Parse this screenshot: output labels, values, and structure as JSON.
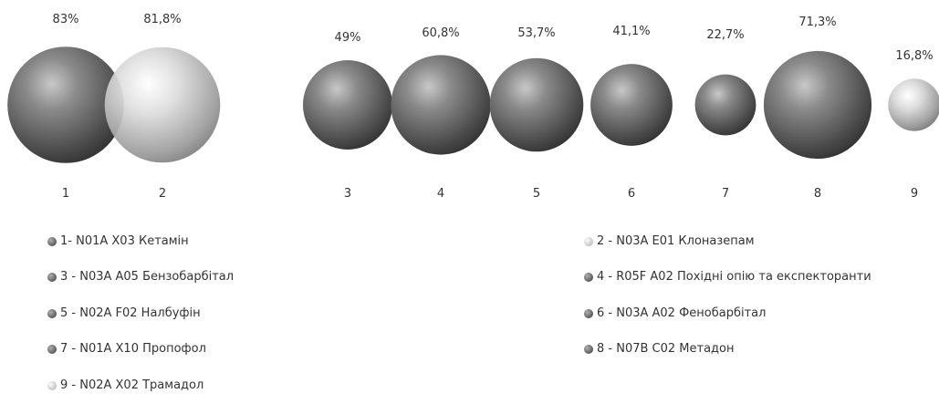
{
  "chart_data": {
    "type": "bubble",
    "categories": [
      "1",
      "2",
      "3",
      "4",
      "5",
      "6",
      "7",
      "8",
      "9"
    ],
    "values": [
      83,
      81.8,
      49,
      60.8,
      53.7,
      41.1,
      22.7,
      71.3,
      16.8
    ],
    "value_labels": [
      "83%",
      "81,8%",
      "49%",
      "60,8%",
      "53,7%",
      "41,1%",
      "22,7%",
      "71,3%",
      "16,8%"
    ],
    "shades": [
      "dark",
      "light",
      "dark",
      "dark",
      "dark",
      "dark",
      "dark",
      "dark",
      "light"
    ],
    "legend": [
      {
        "text": "1- N01A X03 Кетамін",
        "shade": "dark"
      },
      {
        "text": "2 - N03A E01 Клоназепам",
        "shade": "light"
      },
      {
        "text": "3 - N03A A05 Бензобарбітал",
        "shade": "dark"
      },
      {
        "text": "4 - R05F A02 Похідні опію та експекторанти",
        "shade": "dark"
      },
      {
        "text": "5 - N02A F02 Налбуфін",
        "shade": "dark"
      },
      {
        "text": "6 - N03A A02 Фенобарбітал",
        "shade": "dark"
      },
      {
        "text": "7 - N01A X10 Пропофол",
        "shade": "dark"
      },
      {
        "text": "8 - N07B C02 Метадон",
        "shade": "dark"
      },
      {
        "text": "9 - N02A X02 Трамадол",
        "shade": "light"
      }
    ],
    "legend_placement": "bottom",
    "grid": false,
    "colors": {
      "dark": "#6b6b6b",
      "light": "#d8d8d8"
    }
  }
}
